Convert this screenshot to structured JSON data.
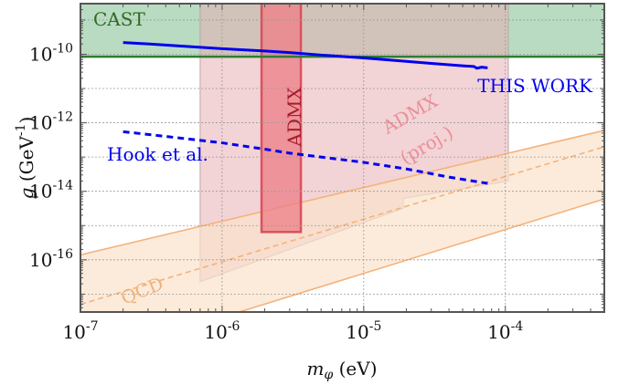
{
  "chart_data": {
    "type": "line",
    "xscale": "log",
    "yscale": "log",
    "xlim": [
      1e-07,
      0.0005
    ],
    "ylim": [
      3e-18,
      3e-09
    ],
    "grid": true,
    "xlabel": "m_φ (eV)",
    "ylabel": "g (GeV^-1)",
    "x_ticks": [
      {
        "value": 1e-07,
        "label": "10^{-7}"
      },
      {
        "value": 1e-06,
        "label": "10^{-6}"
      },
      {
        "value": 1e-05,
        "label": "10^{-5}"
      },
      {
        "value": 0.0001,
        "label": "10^{-4}"
      }
    ],
    "y_ticks": [
      {
        "value": 1e-10,
        "label": "10^{-10}"
      },
      {
        "value": 1e-12,
        "label": "10^{-12}"
      },
      {
        "value": 1e-14,
        "label": "10^{-14}"
      },
      {
        "value": 1e-16,
        "label": "10^{-16}"
      }
    ],
    "regions": [
      {
        "name": "CAST",
        "label": "CAST",
        "color": "#93c89f",
        "x": [
          1e-07,
          0.0005
        ],
        "lower": 8.5e-11,
        "upper": 3e-09,
        "line_color": "#2e7d32"
      },
      {
        "name": "ADMX (proj.)",
        "label": "ADMX (proj.)",
        "color": "#e8aeb4",
        "polygon": [
          [
            7e-07,
            3e-09
          ],
          [
            0.000105,
            3e-09
          ],
          [
            0.000105,
            2e-14
          ],
          [
            1.9e-05,
            6.2e-15
          ],
          [
            1.9e-05,
            3.2e-15
          ],
          [
            7e-07,
            2.3e-17
          ]
        ]
      },
      {
        "name": "ADMX",
        "label": "ADMX",
        "color": "#ee7d86",
        "edge_color": "#d9525c",
        "x": [
          1.9e-06,
          3.6e-06
        ],
        "lower": 6.5e-16,
        "upper": 3e-09
      },
      {
        "name": "QCD",
        "label": "QCD",
        "color": "#fbe2cb",
        "edge_color": "#f5b27b",
        "lower_line": [
          [
            1e-07,
            1.1e-19
          ],
          [
            0.0005,
            6e-15
          ]
        ],
        "upper_line": [
          [
            1e-07,
            1.4e-16
          ],
          [
            0.0005,
            6e-13
          ]
        ],
        "center_line": [
          [
            1e-07,
            5e-18
          ],
          [
            0.0005,
            2e-13
          ]
        ]
      }
    ],
    "series": [
      {
        "name": "THIS WORK",
        "label": "THIS WORK",
        "color": "#0000ee",
        "style": "solid",
        "x": [
          2e-07,
          3e-07,
          5e-07,
          1e-06,
          2e-06,
          3e-06,
          5e-06,
          1e-05,
          2e-05,
          3e-05,
          5e-05,
          6e-05,
          6.3e-05,
          6.8e-05,
          7.5e-05
        ],
        "y": [
          2.2e-10,
          2e-10,
          1.75e-10,
          1.45e-10,
          1.25e-10,
          1.12e-10,
          9.5e-11,
          7.8e-11,
          6.2e-11,
          5.4e-11,
          4.6e-11,
          4.4e-11,
          3.9e-11,
          4.2e-11,
          4e-11
        ]
      },
      {
        "name": "Hook et al.",
        "label": "Hook et al.",
        "color": "#0000ee",
        "style": "dashed",
        "x": [
          2e-07,
          4e-07,
          1e-06,
          2e-06,
          3e-06,
          5e-06,
          1e-05,
          2e-05,
          4e-05,
          7.5e-05
        ],
        "y": [
          5.5e-13,
          4e-13,
          2.6e-13,
          1.7e-13,
          1.3e-13,
          1e-13,
          7e-14,
          4.5e-14,
          2.6e-14,
          1.7e-14
        ]
      }
    ]
  }
}
